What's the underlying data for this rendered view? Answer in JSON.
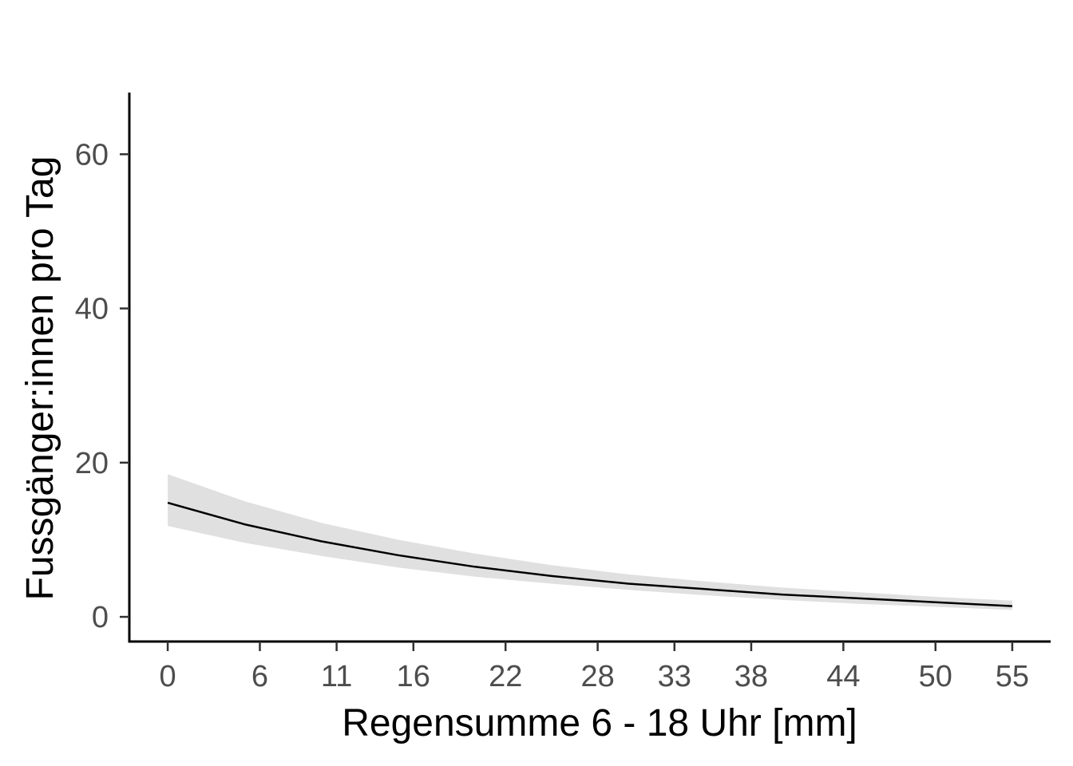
{
  "chart_data": {
    "type": "line",
    "title": "",
    "xlabel": "Regensumme 6 - 18 Uhr [mm]",
    "ylabel": "Fussgänger:innen pro Tag",
    "xlim": [
      -2.5,
      57.5
    ],
    "ylim": [
      -3.2,
      68
    ],
    "x_ticks": [
      0,
      6,
      11,
      16,
      22,
      28,
      33,
      38,
      44,
      50,
      55
    ],
    "y_ticks": [
      0,
      20,
      40,
      60
    ],
    "grid": false,
    "legend": "none",
    "colors": {
      "line": "#000000",
      "ribbon": "#e0e0e0",
      "axis": "#000000",
      "tick_label": "#4d4d4d"
    },
    "series": [
      {
        "x": [
          0,
          5,
          10,
          15,
          20,
          25,
          30,
          35,
          40,
          45,
          50,
          55
        ],
        "y": [
          14.8,
          12.0,
          9.8,
          8.0,
          6.5,
          5.3,
          4.3,
          3.6,
          2.9,
          2.4,
          1.9,
          1.4
        ],
        "lower": [
          11.8,
          9.6,
          7.9,
          6.4,
          5.2,
          4.3,
          3.5,
          2.8,
          2.2,
          1.7,
          1.3,
          0.9
        ],
        "upper": [
          18.5,
          15.0,
          12.2,
          10.0,
          8.2,
          6.7,
          5.5,
          4.6,
          3.8,
          3.2,
          2.6,
          2.1
        ]
      }
    ]
  }
}
